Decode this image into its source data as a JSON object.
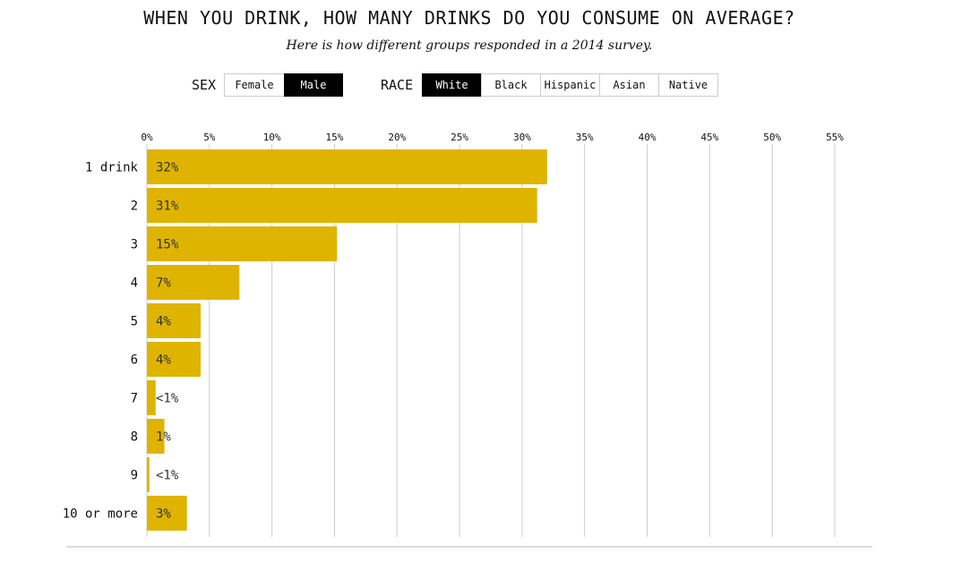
{
  "title": "WHEN YOU DRINK, HOW MANY DRINKS DO YOU CONSUME ON AVERAGE?",
  "subtitle": "Here is how different groups responded in a 2014 survey.",
  "filters": {
    "sex": {
      "label": "SEX",
      "options": [
        "Female",
        "Male"
      ],
      "selected": "Male"
    },
    "race": {
      "label": "RACE",
      "options": [
        "White",
        "Black",
        "Hispanic",
        "Asian",
        "Native"
      ],
      "selected": "White"
    }
  },
  "colors": {
    "bar": "#dfb400",
    "grid": "#cccccc",
    "active_button": "#000000"
  },
  "chart_data": {
    "type": "bar",
    "orientation": "horizontal",
    "title": "WHEN YOU DRINK, HOW MANY DRINKS DO YOU CONSUME ON AVERAGE?",
    "subtitle": "Here is how different groups responded in a 2014 survey.",
    "categories": [
      "1 drink",
      "2",
      "3",
      "4",
      "5",
      "6",
      "7",
      "8",
      "9",
      "10 or more"
    ],
    "values": [
      32,
      31.2,
      15.2,
      7.4,
      4.3,
      4.3,
      0.7,
      1.4,
      0.2,
      3.2
    ],
    "data_labels": [
      "32%",
      "31%",
      "15%",
      "7%",
      "4%",
      "4%",
      "<1%",
      "1%",
      "<1%",
      "3%"
    ],
    "xlim": [
      0,
      55
    ],
    "xticks": [
      0,
      5,
      10,
      15,
      20,
      25,
      30,
      35,
      40,
      45,
      50,
      55
    ],
    "xtick_labels": [
      "0%",
      "5%",
      "10%",
      "15%",
      "20%",
      "25%",
      "30%",
      "35%",
      "40%",
      "45%",
      "50%",
      "55%"
    ],
    "x_axis_position": "top",
    "grid": true,
    "legend": "none"
  }
}
